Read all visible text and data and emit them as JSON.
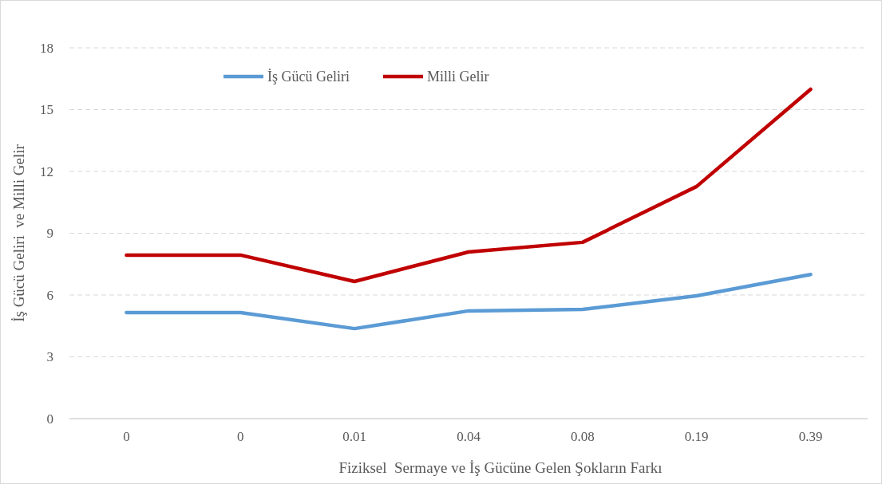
{
  "chart_data": {
    "type": "line",
    "xlabel": "Fiziksel  Sermaye ve İş Gücüne Gelen Şokların Farkı",
    "ylabel": "İş Gücü Geliri  ve Milli Gelir",
    "categories": [
      "0",
      "0",
      "0.01",
      "0.04",
      "0.08",
      "0.19",
      "0.39"
    ],
    "series": [
      {
        "name": "İş Gücü Geliri",
        "color": "#5b9bd5",
        "values": [
          5.15,
          5.15,
          4.37,
          5.23,
          5.3,
          5.96,
          7.0
        ]
      },
      {
        "name": "Milli Gelir",
        "color": "#c00000",
        "values": [
          7.94,
          7.94,
          6.66,
          8.09,
          8.56,
          11.27,
          15.99
        ]
      }
    ],
    "ylim": [
      0,
      18
    ],
    "yticks": [
      0,
      3,
      6,
      9,
      12,
      15,
      18
    ],
    "grid": "y",
    "legend": "top left",
    "marker": "none",
    "line_style": "solid"
  }
}
